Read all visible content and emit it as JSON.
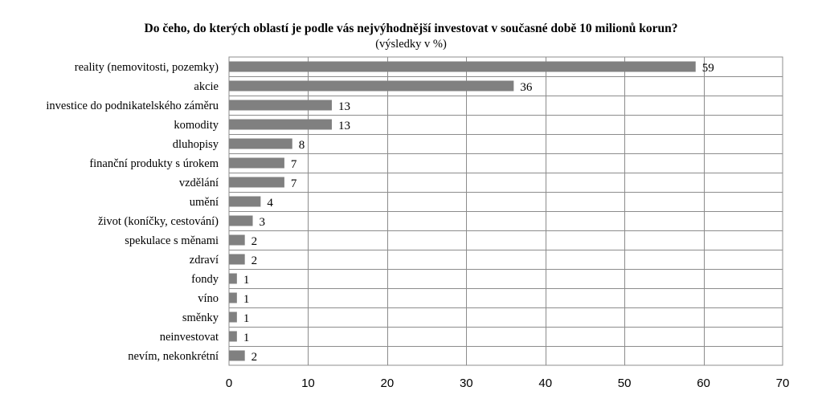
{
  "chart_data": {
    "type": "bar",
    "orientation": "horizontal",
    "title": "Do čeho, do kterých oblastí je podle vás nejvýhodnější investovat v současné době 10 milionů korun?",
    "subtitle": "(výsledky v %)",
    "categories": [
      "reality (nemovitosti, pozemky)",
      "akcie",
      "investice do podnikatelského záměru",
      "komodity",
      "dluhopisy",
      "finanční produkty s úrokem",
      "vzdělání",
      "umění",
      "život (koníčky, cestování)",
      "spekulace s měnami",
      "zdraví",
      "fondy",
      "víno",
      "směnky",
      "neinvestovat",
      "nevím, nekonkrétní"
    ],
    "values": [
      59,
      36,
      13,
      13,
      8,
      7,
      7,
      4,
      3,
      2,
      2,
      1,
      1,
      1,
      1,
      2
    ],
    "xlim": [
      0,
      70
    ],
    "xticks": [
      0,
      10,
      20,
      30,
      40,
      50,
      60,
      70
    ],
    "grid": true,
    "legend": "none",
    "bar_color": "#808080",
    "grid_color": "#8c8c8c"
  }
}
